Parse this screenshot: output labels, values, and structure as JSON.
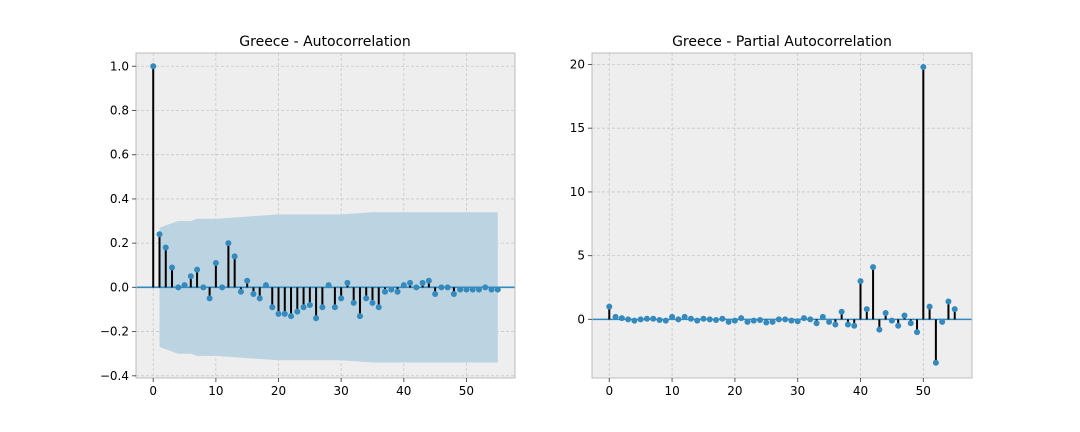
{
  "chart_data": [
    {
      "type": "stem",
      "title": "Greece - Autocorrelation",
      "xlim": [
        -2.75,
        57.75
      ],
      "ylim": [
        -0.41,
        1.06
      ],
      "xticks": [
        0,
        10,
        20,
        30,
        40,
        50
      ],
      "yticks": [
        -0.4,
        -0.2,
        0.0,
        0.2,
        0.4,
        0.6,
        0.8,
        1.0
      ],
      "ytick_labels": [
        "−0.4",
        "−0.2",
        "0.0",
        "0.2",
        "0.4",
        "0.6",
        "0.8",
        "1.0"
      ],
      "grid": true,
      "x": [
        0,
        1,
        2,
        3,
        4,
        5,
        6,
        7,
        8,
        9,
        10,
        11,
        12,
        13,
        14,
        15,
        16,
        17,
        18,
        19,
        20,
        21,
        22,
        23,
        24,
        25,
        26,
        27,
        28,
        29,
        30,
        31,
        32,
        33,
        34,
        35,
        36,
        37,
        38,
        39,
        40,
        41,
        42,
        43,
        44,
        45,
        46,
        47,
        48,
        49,
        50,
        51,
        52,
        53,
        54,
        55
      ],
      "values": [
        1.0,
        0.24,
        0.18,
        0.09,
        0.0,
        0.01,
        0.05,
        0.08,
        0.0,
        -0.05,
        0.11,
        0.0,
        0.2,
        0.14,
        -0.02,
        0.03,
        -0.03,
        -0.05,
        0.01,
        -0.09,
        -0.12,
        -0.12,
        -0.13,
        -0.11,
        -0.09,
        -0.08,
        -0.14,
        -0.09,
        0.01,
        -0.09,
        -0.05,
        0.02,
        -0.07,
        -0.13,
        -0.05,
        -0.07,
        -0.09,
        -0.02,
        -0.01,
        -0.02,
        0.01,
        0.02,
        0.0,
        0.02,
        0.03,
        -0.03,
        0.0,
        0.0,
        -0.03,
        -0.01,
        -0.01,
        -0.01,
        -0.01,
        0.0,
        -0.01,
        -0.01
      ],
      "confidence_band": {
        "x": [
          1,
          2,
          3,
          4,
          5,
          6,
          7,
          8,
          9,
          10,
          15,
          20,
          25,
          30,
          35,
          40,
          45,
          50,
          55
        ],
        "upper": [
          0.27,
          0.28,
          0.29,
          0.3,
          0.3,
          0.3,
          0.31,
          0.31,
          0.31,
          0.31,
          0.32,
          0.33,
          0.33,
          0.33,
          0.34,
          0.34,
          0.34,
          0.34,
          0.34
        ],
        "lower": [
          -0.27,
          -0.28,
          -0.29,
          -0.3,
          -0.3,
          -0.3,
          -0.31,
          -0.31,
          -0.31,
          -0.31,
          -0.32,
          -0.33,
          -0.33,
          -0.33,
          -0.34,
          -0.34,
          -0.34,
          -0.34,
          -0.34
        ]
      }
    },
    {
      "type": "stem",
      "title": "Greece - Partial Autocorrelation",
      "xlim": [
        -2.75,
        57.75
      ],
      "ylim": [
        -4.6,
        20.9
      ],
      "xticks": [
        0,
        10,
        20,
        30,
        40,
        50
      ],
      "yticks": [
        0,
        5,
        10,
        15,
        20
      ],
      "ytick_labels": [
        "0",
        "5",
        "10",
        "15",
        "20"
      ],
      "grid": true,
      "x": [
        0,
        1,
        2,
        3,
        4,
        5,
        6,
        7,
        8,
        9,
        10,
        11,
        12,
        13,
        14,
        15,
        16,
        17,
        18,
        19,
        20,
        21,
        22,
        23,
        24,
        25,
        26,
        27,
        28,
        29,
        30,
        31,
        32,
        33,
        34,
        35,
        36,
        37,
        38,
        39,
        40,
        41,
        42,
        43,
        44,
        45,
        46,
        47,
        48,
        49,
        50,
        51,
        52,
        53,
        54,
        55
      ],
      "values": [
        1.0,
        0.2,
        0.1,
        0.0,
        -0.1,
        0.0,
        0.05,
        0.05,
        -0.05,
        -0.1,
        0.2,
        0.0,
        0.2,
        0.05,
        -0.1,
        0.05,
        0.0,
        -0.05,
        0.05,
        -0.2,
        -0.1,
        0.1,
        -0.2,
        -0.1,
        -0.05,
        -0.25,
        -0.2,
        0.0,
        0.0,
        -0.1,
        -0.15,
        0.1,
        0.0,
        -0.3,
        0.2,
        -0.2,
        -0.4,
        0.6,
        -0.4,
        -0.5,
        3.0,
        0.8,
        4.1,
        -0.8,
        0.5,
        -0.1,
        -0.5,
        0.3,
        -0.3,
        -1.0,
        19.8,
        1.0,
        -3.4,
        -0.2,
        1.4,
        0.8
      ]
    }
  ],
  "colors": {
    "marker": "#348abd",
    "stem": "#000000",
    "baseline": "#348abd",
    "band": "#bcd3e1",
    "axes_bg": "#eeeeee",
    "grid": "#c8c8c8"
  }
}
